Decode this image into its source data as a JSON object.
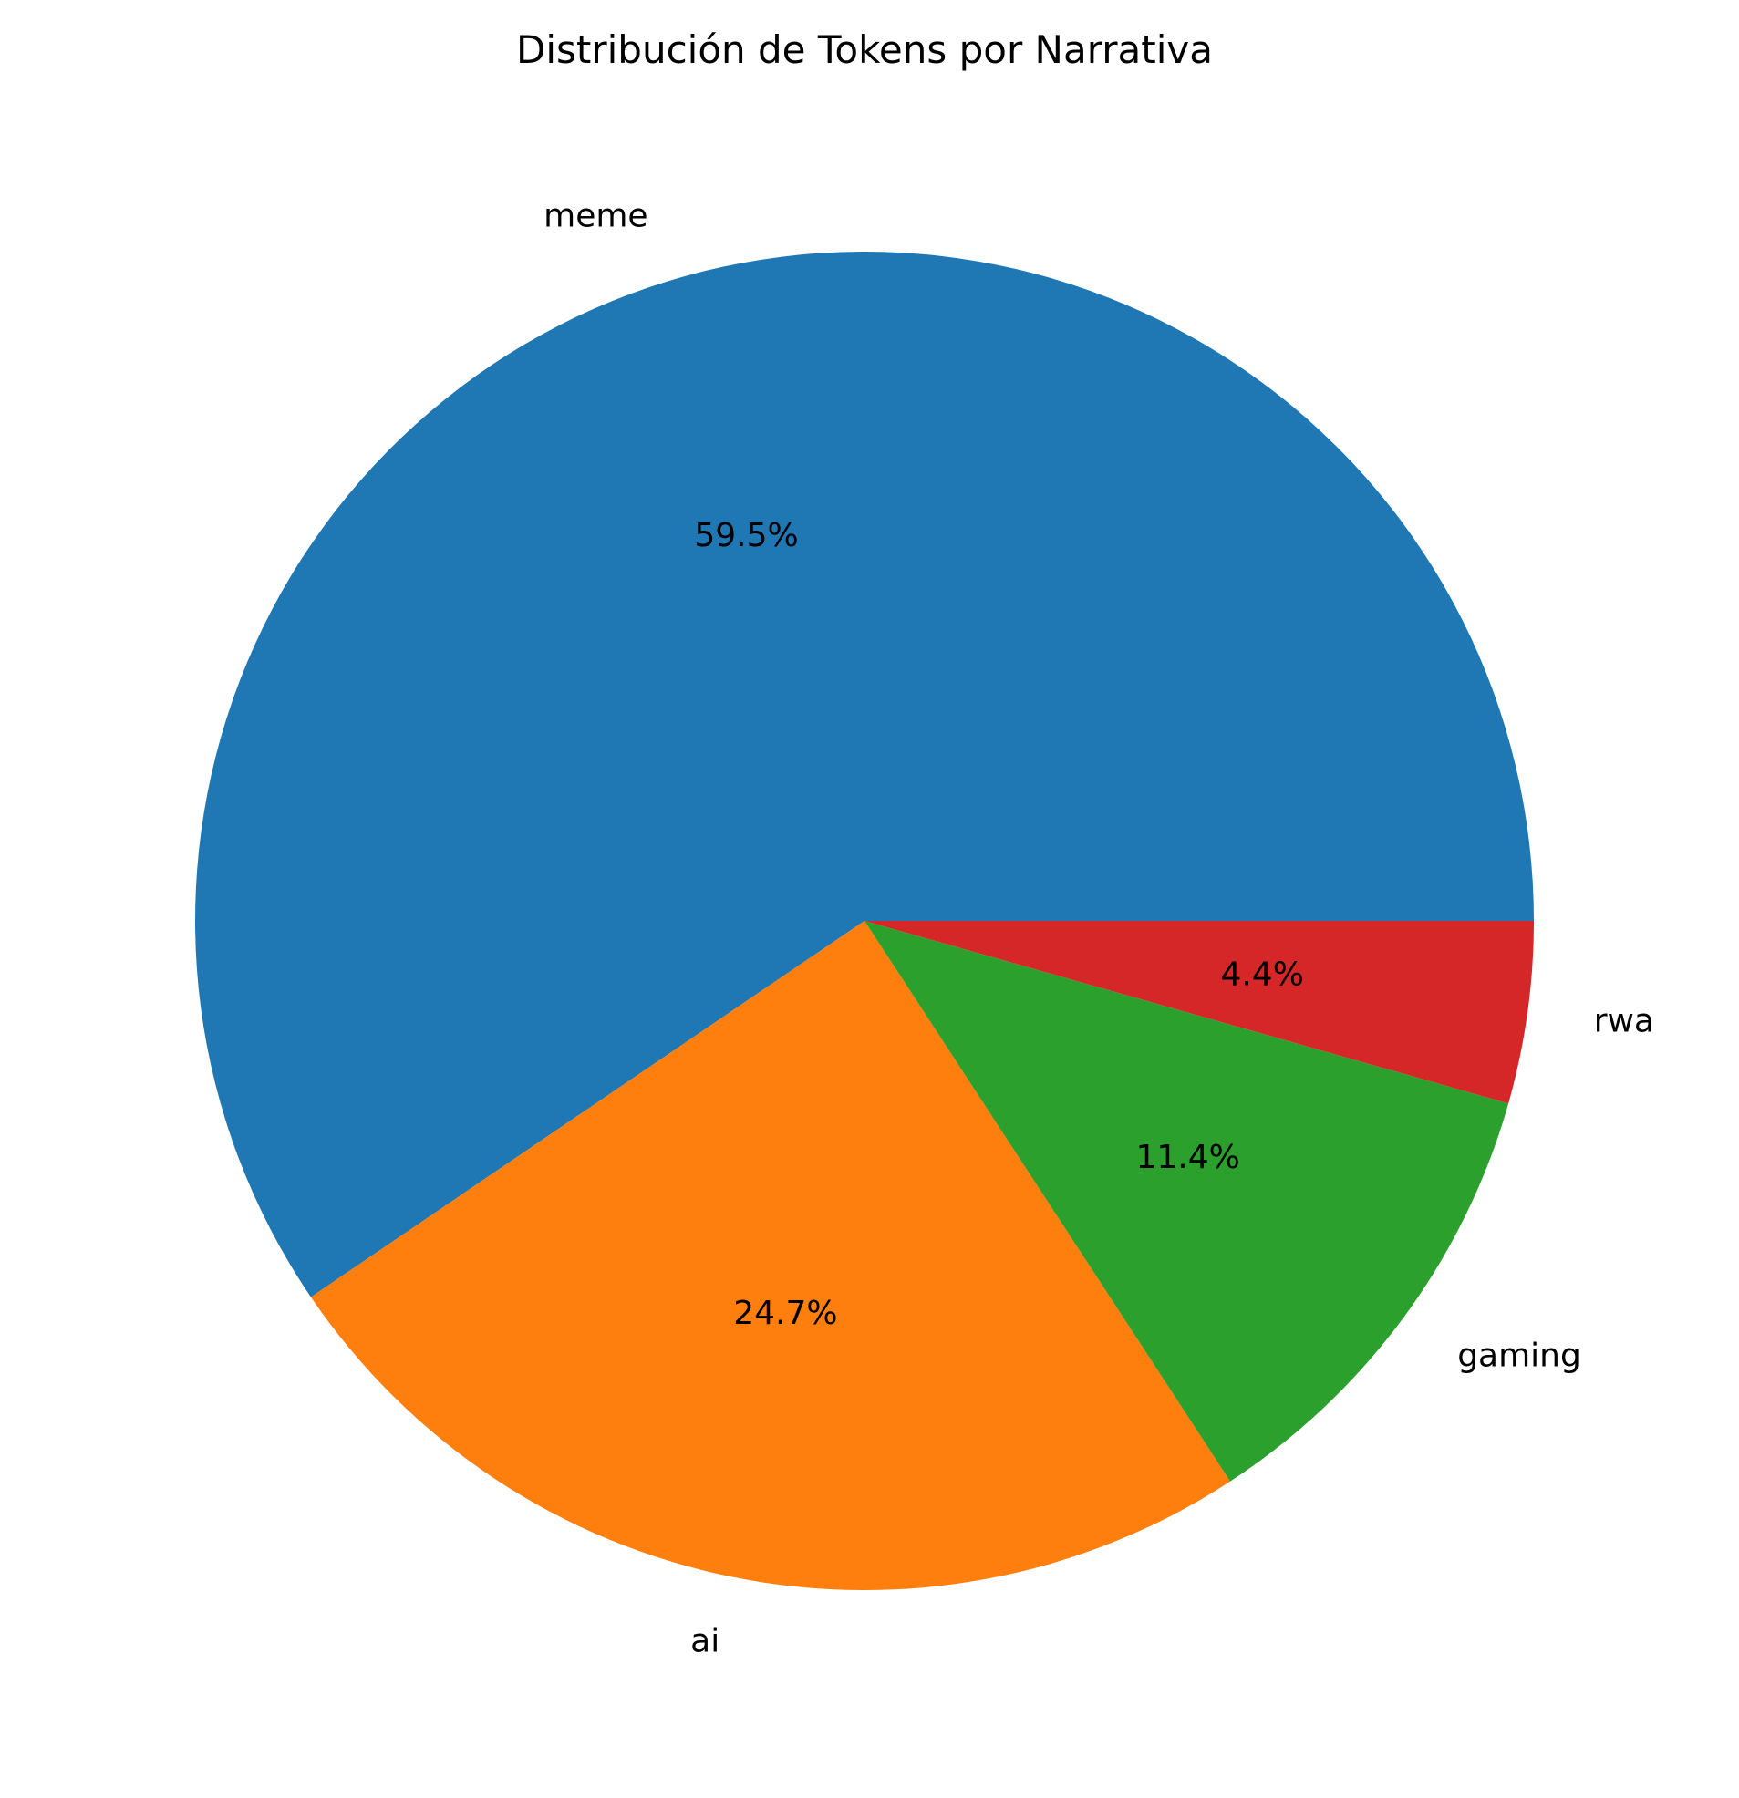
{
  "chart_data": {
    "type": "pie",
    "title": "Distribución de Tokens por Narrativa",
    "start_angle_deg": 0,
    "direction": "counterclockwise",
    "slices": [
      {
        "label": "meme",
        "value": 59.5,
        "pct_label": "59.5%",
        "color": "#1f77b4"
      },
      {
        "label": "ai",
        "value": 24.7,
        "pct_label": "24.7%",
        "color": "#ff7f0e"
      },
      {
        "label": "gaming",
        "value": 11.4,
        "pct_label": "11.4%",
        "color": "#2ca02c"
      },
      {
        "label": "rwa",
        "value": 4.4,
        "pct_label": "4.4%",
        "color": "#d62728"
      }
    ],
    "legend": "none"
  }
}
